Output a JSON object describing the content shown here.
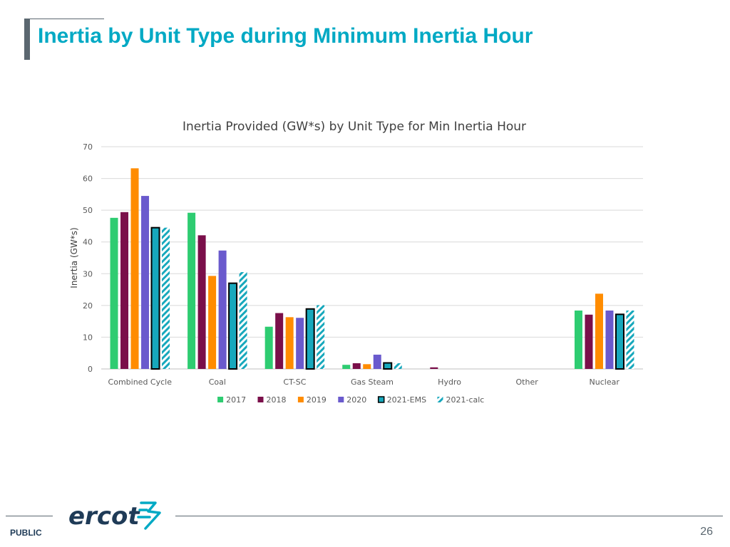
{
  "slide": {
    "title": "Inertia by Unit Type during Minimum Inertia Hour",
    "footer_label": "PUBLIC",
    "page_number": "26",
    "logo_text": "ercot"
  },
  "colors": {
    "title": "#00a9c4",
    "accent_bar": "#5b6770",
    "s2017": "#2ecc71",
    "s2018": "#7a0f4a",
    "s2019": "#ff8c00",
    "s2020": "#6a5acd",
    "s2021ems": "#17a8bc",
    "s2021calc": "#17a8bc",
    "logo": "#1f3b57",
    "logo_symbol": "#00a9c4"
  },
  "chart_data": {
    "type": "bar",
    "title": "Inertia Provided (GW*s) by Unit Type for Min Inertia Hour",
    "xlabel": "",
    "ylabel": "Inertia (GW*s)",
    "ylim": [
      0,
      70
    ],
    "yticks": [
      0,
      10,
      20,
      30,
      40,
      50,
      60,
      70
    ],
    "grid": true,
    "legend_position": "bottom",
    "categories": [
      "Combined Cycle",
      "Coal",
      "CT-SC",
      "Gas Steam",
      "Hydro",
      "Other",
      "Nuclear"
    ],
    "series": [
      {
        "name": "2017",
        "color": "#2ecc71",
        "style": "solid",
        "values": [
          47.6,
          49.2,
          13.3,
          1.3,
          0,
          0,
          18.4
        ]
      },
      {
        "name": "2018",
        "color": "#7a0f4a",
        "style": "solid",
        "values": [
          49.4,
          42.1,
          17.6,
          1.8,
          0.5,
          0,
          17.1
        ]
      },
      {
        "name": "2019",
        "color": "#ff8c00",
        "style": "solid",
        "values": [
          63.2,
          29.3,
          16.3,
          1.5,
          0,
          0,
          23.7
        ]
      },
      {
        "name": "2020",
        "color": "#6a5acd",
        "style": "solid",
        "values": [
          54.5,
          37.3,
          16.1,
          4.5,
          0,
          0,
          18.4
        ]
      },
      {
        "name": "2021-EMS",
        "color": "#17a8bc",
        "style": "outlined",
        "values": [
          44.5,
          27.0,
          18.9,
          1.9,
          0,
          0,
          17.2
        ]
      },
      {
        "name": "2021-calc",
        "color": "#17a8bc",
        "style": "hatched",
        "values": [
          44.5,
          30.5,
          20.1,
          1.8,
          0,
          0,
          18.4
        ]
      }
    ]
  }
}
